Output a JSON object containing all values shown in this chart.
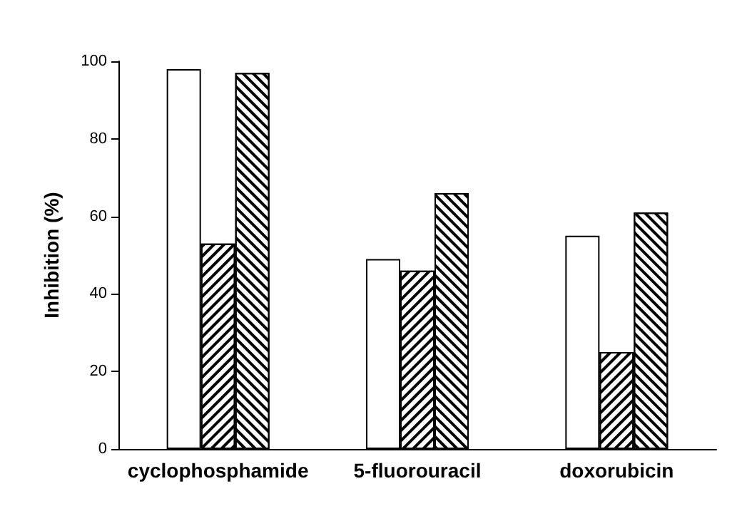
{
  "chart_data": {
    "type": "bar",
    "ylabel": "Inhibition (%)",
    "categories": [
      "cyclophosphamide",
      "5-fluorouracil",
      "doxorubicin"
    ],
    "series": [
      {
        "color": "#ffffff",
        "values": [
          98,
          49,
          55
        ]
      },
      {
        "color": "#ffffff",
        "values": [
          53,
          46,
          25
        ]
      },
      {
        "color": "#ffffff",
        "values": [
          97,
          66,
          61
        ]
      }
    ],
    "ylim": [
      0,
      100
    ],
    "yticks": [
      0,
      20,
      40,
      60,
      80,
      100
    ],
    "grid": false
  }
}
